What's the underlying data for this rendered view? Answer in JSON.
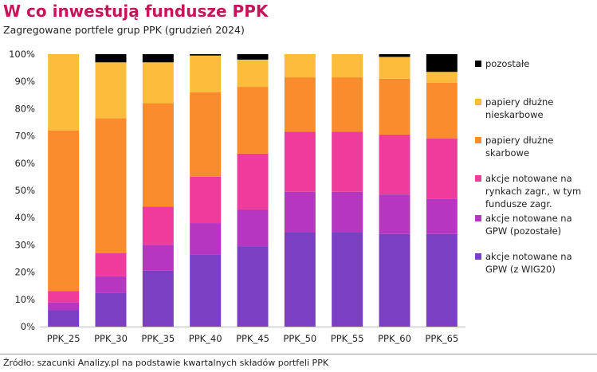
{
  "title": "W co inwestują fundusze PPK",
  "subtitle": "Zagregowane portfele grup PPK (grudzień 2024)",
  "source": "Źródło: szacunki Analizy.pl na podstawie kwartalnych składów portfeli PPK",
  "chart_data": {
    "type": "bar",
    "stacked": true,
    "categories": [
      "PPK_25",
      "PPK_30",
      "PPK_35",
      "PPK_40",
      "PPK_45",
      "PPK_50",
      "PPK_55",
      "PPK_60",
      "PPK_65"
    ],
    "y_ticks": [
      "0%",
      "10%",
      "20%",
      "30%",
      "40%",
      "50%",
      "60%",
      "70%",
      "80%",
      "90%",
      "100%"
    ],
    "ylim": [
      0,
      100
    ],
    "legend_position": "right",
    "series": [
      {
        "name": "akcje notowane na GPW (z WIG20)",
        "color": "#7b3fc4",
        "values": [
          6,
          12.5,
          20.5,
          26.5,
          29.5,
          34.5,
          34.5,
          34,
          34
        ]
      },
      {
        "name": "akcje notowane na GPW (pozostałe)",
        "color": "#b636c0",
        "values": [
          3,
          6,
          9.5,
          11.5,
          13.5,
          15,
          15,
          14.5,
          13
        ]
      },
      {
        "name": "akcje notowane na rynkach zagr., w tym fundusze zagr.",
        "color": "#ef3c9c",
        "values": [
          4,
          8.5,
          14,
          17,
          20.5,
          22,
          22,
          22,
          22
        ]
      },
      {
        "name": "papiery dłużne skarbowe",
        "color": "#fb8c2d",
        "values": [
          59,
          49.5,
          38,
          31,
          24.5,
          20,
          20,
          20.5,
          20.5
        ]
      },
      {
        "name": "papiery dłużne nieskarbowe",
        "color": "#fdbd3c",
        "values": [
          28,
          20.5,
          15,
          13.5,
          10,
          8.5,
          8.5,
          8,
          4
        ]
      },
      {
        "name": "pozostałe",
        "color": "#000000",
        "values": [
          0,
          3,
          3,
          0.5,
          2,
          0,
          0,
          1,
          6.5
        ]
      }
    ]
  },
  "legend": [
    {
      "label": "pozostałe",
      "color": "#000000"
    },
    {
      "label": "papiery dłużne nieskarbowe",
      "color": "#fdbd3c"
    },
    {
      "label": "papiery dłużne skarbowe",
      "color": "#fb8c2d"
    },
    {
      "label": "akcje notowane na rynkach zagr., w tym fundusze zagr.",
      "color": "#ef3c9c"
    },
    {
      "label": "akcje notowane na GPW (pozostałe)",
      "color": "#b636c0"
    },
    {
      "label": "akcje notowane na GPW (z WIG20)",
      "color": "#7b3fc4"
    }
  ]
}
